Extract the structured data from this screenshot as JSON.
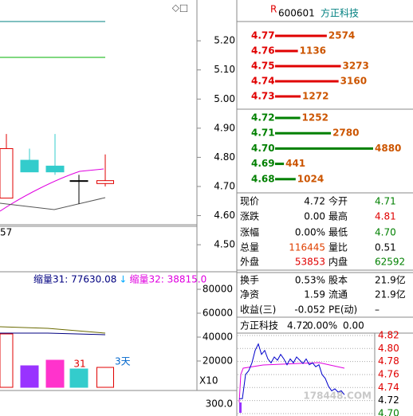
{
  "header": {
    "flag": "R",
    "code": "600601",
    "name": "方正科技",
    "icons": "◇□"
  },
  "price_chart": {
    "ylim": [
      4.41,
      5.34
    ],
    "yticks": [
      {
        "value": 5.2,
        "label": "5.20"
      },
      {
        "value": 5.1,
        "label": "5.10"
      },
      {
        "value": 5.0,
        "label": "5.00"
      },
      {
        "value": 4.9,
        "label": "4.90"
      },
      {
        "value": 4.8,
        "label": "4.80"
      },
      {
        "value": 4.7,
        "label": "4.70"
      },
      {
        "value": 4.6,
        "label": "4.60"
      },
      {
        "value": 4.5,
        "label": "4.50"
      }
    ],
    "candles": [
      {
        "open": 4.66,
        "high": 4.88,
        "low": 4.66,
        "close": 4.83
      },
      {
        "open": 4.79,
        "high": 4.83,
        "low": 4.75,
        "close": 4.75
      },
      {
        "open": 4.77,
        "high": 4.88,
        "low": 4.74,
        "close": 4.75
      },
      {
        "open": 4.72,
        "high": 4.74,
        "low": 4.64,
        "close": 4.72
      },
      {
        "open": 4.71,
        "high": 4.81,
        "low": 4.7,
        "close": 4.72
      }
    ],
    "corner_label": "57"
  },
  "volume_chart": {
    "legend": [
      {
        "text": "缩量31: 77630.08",
        "color": "#000080"
      },
      {
        "text": "↓",
        "color": "#00aaff"
      },
      {
        "text": "缩量32: 38815.0",
        "color": "#e000e0"
      }
    ],
    "ylim": [
      0,
      94667
    ],
    "yticks": [
      80000,
      60000,
      40000,
      20000
    ],
    "values": [
      42667,
      16000,
      20667,
      13333,
      14667
    ],
    "colors": [
      "#e00000",
      "#9933ff",
      "#ff33cc",
      "#33cccc",
      "#e00000"
    ],
    "hollow": [
      true,
      false,
      false,
      false,
      true
    ],
    "annotations": [
      "31",
      "3天"
    ],
    "unit_label": "X10",
    "sub_label": "300.0"
  },
  "order_book": {
    "asks": [
      {
        "price": "4.77",
        "volume": 2574
      },
      {
        "price": "4.76",
        "volume": 1136
      },
      {
        "price": "4.75",
        "volume": 3273
      },
      {
        "price": "4.74",
        "volume": 3160
      },
      {
        "price": "4.73",
        "volume": 1272
      }
    ],
    "bids": [
      {
        "price": "4.72",
        "volume": 1252
      },
      {
        "price": "4.71",
        "volume": 2780
      },
      {
        "price": "4.70",
        "volume": 4880
      },
      {
        "price": "4.69",
        "volume": 441
      },
      {
        "price": "4.68",
        "volume": 1024
      }
    ],
    "max_volume_scale": 4880
  },
  "stats": {
    "rows": [
      [
        "现价",
        "4.72",
        "今开",
        "4.71"
      ],
      [
        "涨跌",
        "0.00",
        "最高",
        "4.81"
      ],
      [
        "涨幅",
        "0.00%",
        "最低",
        "4.70"
      ],
      [
        "总量",
        "116445",
        "量比",
        "0.51"
      ],
      [
        "外盘",
        "53853",
        "内盘",
        "62592"
      ],
      [
        "换手",
        "0.53%",
        "股本",
        "21.9亿"
      ],
      [
        "净资",
        "1.59",
        "流通",
        "21.9亿"
      ],
      [
        "收益(三)",
        "-0.052",
        "PE(动)",
        "–"
      ]
    ],
    "colors": [
      [
        "#000",
        "#000",
        "#000",
        "#008000"
      ],
      [
        "#000",
        "#000",
        "#000",
        "#e00000"
      ],
      [
        "#000",
        "#000",
        "#000",
        "#008000"
      ],
      [
        "#000",
        "#e04000",
        "#000",
        "#000"
      ],
      [
        "#000",
        "#e00000",
        "#000",
        "#008000"
      ],
      [
        "#000",
        "#000",
        "#000",
        "#000"
      ],
      [
        "#000",
        "#000",
        "#000",
        "#000"
      ],
      [
        "#000",
        "#000",
        "#000",
        "#000"
      ]
    ]
  },
  "mini_chart": {
    "title": [
      "方正科技",
      "4.72",
      "0.00%",
      "0.00"
    ],
    "ylim": [
      4.7012,
      4.8273
    ],
    "yticks": [
      {
        "value": 4.82,
        "label": "4.82"
      },
      {
        "value": 4.8,
        "label": "4.80"
      },
      {
        "value": 4.78,
        "label": "4.78"
      },
      {
        "value": 4.76,
        "label": "4.76"
      },
      {
        "value": 4.74,
        "label": "4.74"
      },
      {
        "value": 4.72,
        "label": "4.72"
      },
      {
        "value": 4.7,
        "label": "4.70"
      }
    ],
    "ytick_colors": [
      "#e00000",
      "#e00000",
      "#e00000",
      "#e00000",
      "#e00000",
      "#000",
      "#008000"
    ],
    "prices": [
      4.723,
      4.723,
      4.76,
      4.766,
      4.778,
      4.797,
      4.807,
      4.791,
      4.797,
      4.784,
      4.778,
      4.787,
      4.782,
      4.791,
      4.784,
      4.775,
      4.784,
      4.778,
      4.787,
      4.782,
      4.777,
      4.784,
      4.775,
      4.778,
      4.772,
      4.775,
      4.76,
      4.754,
      4.742,
      4.735,
      4.738,
      4.733,
      4.735,
      4.729
    ]
  },
  "watermark": "178448.COM"
}
